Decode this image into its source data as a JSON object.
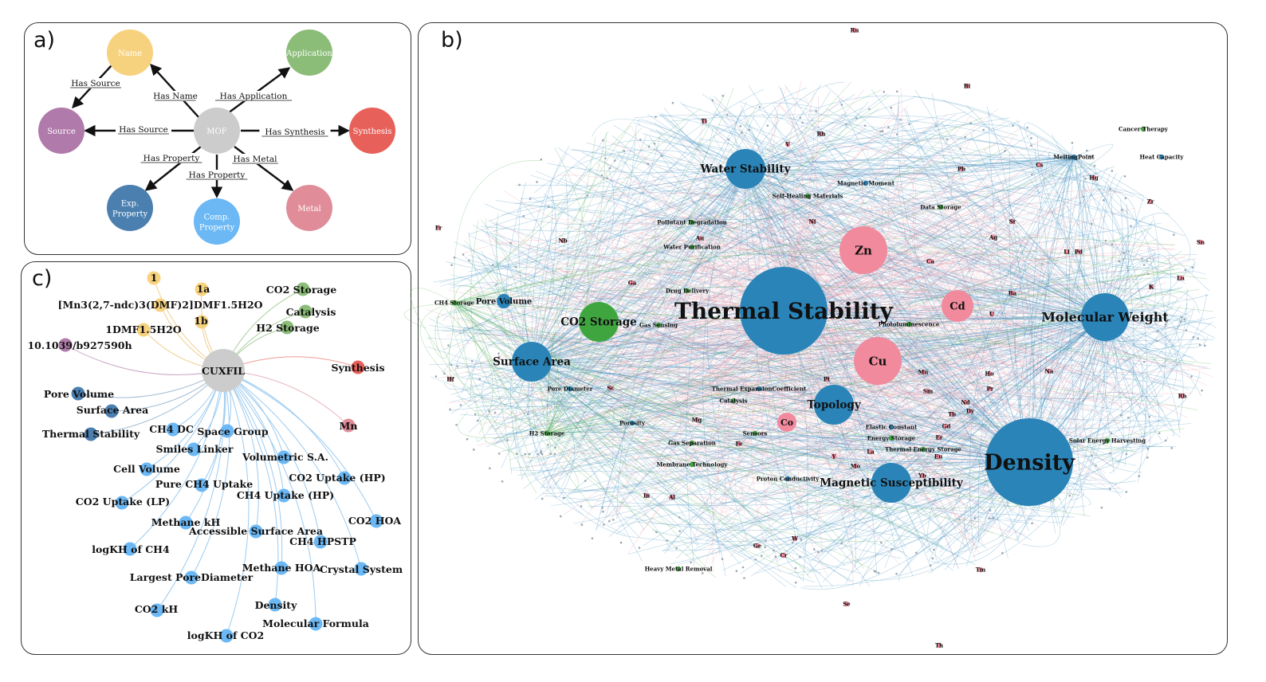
{
  "panels": {
    "a": "a)",
    "b": "b)",
    "c": "c)"
  },
  "colors": {
    "name": "#f7d27e",
    "application": "#8bbd78",
    "source": "#b07aaa",
    "mof": "#cccccc",
    "synthesis": "#e8605a",
    "exp_property": "#4a7fb0",
    "comp_property": "#6bb8f5",
    "metal": "#e08d99",
    "b_blue": "#2a84b8",
    "b_pink": "#f08a9c",
    "b_green": "#3fa63f"
  },
  "a": {
    "nodes": {
      "name": "Name",
      "application": "Application",
      "source": "Source",
      "mof": "MOF",
      "synthesis": "Synthesis",
      "exp": "Exp. Property",
      "comp": "Comp. Property",
      "metal": "Metal"
    },
    "edges": {
      "has_source_top": "Has Source",
      "has_name": "Has Name",
      "has_application": "Has Application",
      "has_source": "Has Source",
      "has_synthesis": "Has Synthesis",
      "has_property_left": "Has Property",
      "has_property_mid": "Has Property",
      "has_metal": "Has Metal"
    }
  },
  "b": {
    "nodes": [
      {
        "label": "Thermal Stability",
        "c": "blue",
        "size": "xl"
      },
      {
        "label": "Density",
        "c": "blue",
        "size": "xl2"
      },
      {
        "label": "Molecular Weight",
        "c": "blue",
        "size": "l"
      },
      {
        "label": "Water Stability",
        "c": "blue",
        "size": "m"
      },
      {
        "label": "Surface Area",
        "c": "blue",
        "size": "m"
      },
      {
        "label": "Topology",
        "c": "blue",
        "size": "m"
      },
      {
        "label": "Magnetic Susceptibility",
        "c": "blue",
        "size": "m"
      },
      {
        "label": "Pore Volume",
        "c": "blue",
        "size": "s"
      },
      {
        "label": "CO2 Storage",
        "c": "green",
        "size": "m"
      },
      {
        "label": "Zn",
        "c": "pink",
        "size": "ml"
      },
      {
        "label": "Cu",
        "c": "pink",
        "size": "ml"
      },
      {
        "label": "Cd",
        "c": "pink",
        "size": "mm"
      },
      {
        "label": "Co",
        "c": "pink",
        "size": "ms"
      },
      {
        "label": "Ag",
        "c": "pink",
        "size": "xs"
      },
      {
        "label": "Ni",
        "c": "pink",
        "size": "xs"
      },
      {
        "label": "Mn",
        "c": "pink",
        "size": "xs"
      },
      {
        "label": "Photoluminescence",
        "c": "green",
        "size": "xs"
      },
      {
        "label": "Catalysis",
        "c": "green",
        "size": "xs"
      },
      {
        "label": "Gas Separation",
        "c": "green",
        "size": "xs"
      },
      {
        "label": "H2 Storage",
        "c": "green",
        "size": "xs"
      },
      {
        "label": "Gas Sensing",
        "c": "green",
        "size": "xs"
      },
      {
        "label": "Pollutant Degradation",
        "c": "green",
        "size": "xs"
      },
      {
        "label": "Water Purification",
        "c": "green",
        "size": "xs"
      },
      {
        "label": "Drug Delivery",
        "c": "green",
        "size": "xs"
      },
      {
        "label": "Magnetic Moment",
        "c": "blue",
        "size": "xs"
      },
      {
        "label": "Self-Healing Materials",
        "c": "green",
        "size": "xs"
      },
      {
        "label": "Data Storage",
        "c": "green",
        "size": "xs"
      },
      {
        "label": "MeltingPoint",
        "c": "blue",
        "size": "xs"
      },
      {
        "label": "Cancer Therapy",
        "c": "green",
        "size": "xs"
      },
      {
        "label": "Heat Capacity",
        "c": "blue",
        "size": "xs"
      },
      {
        "label": "CH4 Storage",
        "c": "green",
        "size": "xs"
      },
      {
        "label": "Pore Diameter",
        "c": "blue",
        "size": "xs"
      },
      {
        "label": "Thermal ExpansionCoefficient",
        "c": "blue",
        "size": "xs"
      },
      {
        "label": "Porosity",
        "c": "blue",
        "size": "xs"
      },
      {
        "label": "Sensors",
        "c": "green",
        "size": "xs"
      },
      {
        "label": "Elastic Constant",
        "c": "blue",
        "size": "xs"
      },
      {
        "label": "Energy Storage",
        "c": "green",
        "size": "xs"
      },
      {
        "label": "Thermal Energy Storage",
        "c": "green",
        "size": "xs"
      },
      {
        "label": "Membrane Technology",
        "c": "green",
        "size": "xs"
      },
      {
        "label": "Proton Conductivity",
        "c": "blue",
        "size": "xs"
      },
      {
        "label": "Solar Energy Harvesting",
        "c": "green",
        "size": "xs"
      },
      {
        "label": "Heavy Metal Removal",
        "c": "green",
        "size": "xs"
      },
      {
        "label": "Ru",
        "c": "pink",
        "size": "xs"
      },
      {
        "label": "Bi",
        "c": "pink",
        "size": "xs"
      },
      {
        "label": "Ti",
        "c": "pink",
        "size": "xs"
      },
      {
        "label": "V",
        "c": "pink",
        "size": "xs"
      },
      {
        "label": "Rh",
        "c": "pink",
        "size": "xs"
      },
      {
        "label": "Cs",
        "c": "pink",
        "size": "xs"
      },
      {
        "label": "Hg",
        "c": "pink",
        "size": "xs"
      },
      {
        "label": "Pb",
        "c": "pink",
        "size": "xs"
      },
      {
        "label": "Zr",
        "c": "pink",
        "size": "xs"
      },
      {
        "label": "Sn",
        "c": "pink",
        "size": "xs"
      },
      {
        "label": "Sr",
        "c": "pink",
        "size": "xs"
      },
      {
        "label": "Au",
        "c": "pink",
        "size": "xs"
      },
      {
        "label": "Nb",
        "c": "pink",
        "size": "xs"
      },
      {
        "label": "Fr",
        "c": "pink",
        "size": "xs"
      },
      {
        "label": "Ca",
        "c": "pink",
        "size": "xs"
      },
      {
        "label": "Li",
        "c": "pink",
        "size": "xs"
      },
      {
        "label": "Pd",
        "c": "pink",
        "size": "xs"
      },
      {
        "label": "Ga",
        "c": "pink",
        "size": "xs"
      },
      {
        "label": "Lu",
        "c": "pink",
        "size": "xs"
      },
      {
        "label": "K",
        "c": "pink",
        "size": "xs"
      },
      {
        "label": "Ba",
        "c": "pink",
        "size": "xs"
      },
      {
        "label": "U",
        "c": "pink",
        "size": "xs"
      },
      {
        "label": "Hf",
        "c": "pink",
        "size": "xs"
      },
      {
        "label": "Sc",
        "c": "pink",
        "size": "xs"
      },
      {
        "label": "Ho",
        "c": "pink",
        "size": "xs"
      },
      {
        "label": "Na",
        "c": "pink",
        "size": "xs"
      },
      {
        "label": "Pt",
        "c": "pink",
        "size": "xs"
      },
      {
        "label": "Sm",
        "c": "pink",
        "size": "xs"
      },
      {
        "label": "Pr",
        "c": "pink",
        "size": "xs"
      },
      {
        "label": "Nd",
        "c": "pink",
        "size": "xs"
      },
      {
        "label": "Rb",
        "c": "pink",
        "size": "xs"
      },
      {
        "label": "Dy",
        "c": "pink",
        "size": "xs"
      },
      {
        "label": "Tb",
        "c": "pink",
        "size": "xs"
      },
      {
        "label": "Gd",
        "c": "pink",
        "size": "xs"
      },
      {
        "label": "Mg",
        "c": "pink",
        "size": "xs"
      },
      {
        "label": "Er",
        "c": "pink",
        "size": "xs"
      },
      {
        "label": "Fe",
        "c": "pink",
        "size": "xs"
      },
      {
        "label": "Eu",
        "c": "pink",
        "size": "xs"
      },
      {
        "label": "La",
        "c": "pink",
        "size": "xs"
      },
      {
        "label": "Y",
        "c": "pink",
        "size": "xs"
      },
      {
        "label": "Yb",
        "c": "pink",
        "size": "xs"
      },
      {
        "label": "Mo",
        "c": "pink",
        "size": "xs"
      },
      {
        "label": "In",
        "c": "pink",
        "size": "xs"
      },
      {
        "label": "Al",
        "c": "pink",
        "size": "xs"
      },
      {
        "label": "Ge",
        "c": "pink",
        "size": "xs"
      },
      {
        "label": "Cr",
        "c": "pink",
        "size": "xs"
      },
      {
        "label": "W",
        "c": "pink",
        "size": "xs"
      },
      {
        "label": "Tm",
        "c": "pink",
        "size": "xs"
      },
      {
        "label": "Se",
        "c": "pink",
        "size": "xs"
      },
      {
        "label": "Th",
        "c": "pink",
        "size": "xs"
      }
    ]
  },
  "c": {
    "center": "CUXFIL",
    "names": [
      "1",
      "1a",
      "[Mn3(2,7-ndc)3(DMF)2]DMF1.5H2O",
      "1b",
      "1DMF1.5H2O"
    ],
    "source": "10.1039/b927590h",
    "applications": [
      "CO2 Storage",
      "Catalysis",
      "H2 Storage"
    ],
    "synthesis": "Synthesis",
    "metal": "Mn",
    "exp_props": [
      "Pore Volume",
      "Surface Area",
      "Thermal Stability"
    ],
    "comp_props": [
      "CH4 DC",
      "Space Group",
      "Smiles Linker",
      "Cell Volume",
      "Volumetric S.A.",
      "Pure CH4 Uptake",
      "CO2 Uptake (HP)",
      "CO2 Uptake (LP)",
      "CH4 Uptake (HP)",
      "Methane kH",
      "Accessible Surface Area",
      "CO2 HOA",
      "logKH of CH4",
      "CH4 HPSTP",
      "Methane HOA",
      "Crystal System",
      "Largest PoreDiameter",
      "Density",
      "CO2 kH",
      "Molecular Formula",
      "logKH of CO2"
    ]
  }
}
